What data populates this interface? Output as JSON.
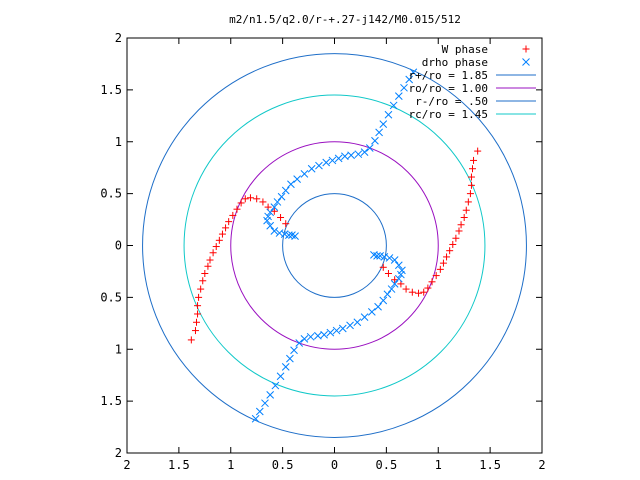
{
  "chart_data": {
    "type": "scatter",
    "title": "m2/n1.5/q2.0/r-+.27-j142/M0.015/512",
    "xlim": [
      -2,
      2
    ],
    "ylim": [
      -2,
      2
    ],
    "x_ticks": [
      -2,
      -1.5,
      -1,
      -0.5,
      0,
      0.5,
      1,
      1.5,
      2
    ],
    "y_ticks": [
      -2,
      -1.5,
      -1,
      -0.5,
      0,
      0.5,
      1,
      1.5,
      2
    ],
    "x_tick_labels": [
      "2",
      "1.5",
      "1",
      "0.5",
      "0",
      "0.5",
      "1",
      "1.5",
      "2"
    ],
    "y_tick_labels": [
      "2",
      "1.5",
      "1",
      "0.5",
      "0",
      "0.5",
      "1",
      "1.5",
      "2"
    ],
    "grid": false,
    "legend_position": "top-right",
    "series": [
      {
        "name": "W phase",
        "marker": "plus",
        "color": "#ff0000",
        "points": [
          [
            -1.38,
            -0.91
          ],
          [
            -1.34,
            -0.82
          ],
          [
            -1.33,
            -0.74
          ],
          [
            -1.32,
            -0.66
          ],
          [
            -1.32,
            -0.58
          ],
          [
            -1.31,
            -0.5
          ],
          [
            -1.29,
            -0.42
          ],
          [
            -1.27,
            -0.34
          ],
          [
            -1.25,
            -0.27
          ],
          [
            -1.22,
            -0.2
          ],
          [
            -1.2,
            -0.14
          ],
          [
            -1.17,
            -0.07
          ],
          [
            -1.14,
            -0.01
          ],
          [
            -1.11,
            0.05
          ],
          [
            -1.08,
            0.11
          ],
          [
            -1.05,
            0.17
          ],
          [
            -1.02,
            0.23
          ],
          [
            -0.98,
            0.29
          ],
          [
            -0.94,
            0.35
          ],
          [
            -0.9,
            0.41
          ],
          [
            -0.86,
            0.45
          ],
          [
            -0.81,
            0.46
          ],
          [
            -0.75,
            0.45
          ],
          [
            -0.69,
            0.42
          ],
          [
            -0.64,
            0.37
          ],
          [
            -0.58,
            0.33
          ],
          [
            -0.52,
            0.27
          ],
          [
            -0.47,
            0.21
          ],
          [
            0.47,
            -0.21
          ],
          [
            0.52,
            -0.27
          ],
          [
            0.58,
            -0.33
          ],
          [
            0.64,
            -0.37
          ],
          [
            0.69,
            -0.42
          ],
          [
            0.75,
            -0.45
          ],
          [
            0.81,
            -0.46
          ],
          [
            0.86,
            -0.45
          ],
          [
            0.9,
            -0.41
          ],
          [
            0.94,
            -0.35
          ],
          [
            0.98,
            -0.29
          ],
          [
            1.02,
            -0.23
          ],
          [
            1.05,
            -0.17
          ],
          [
            1.08,
            -0.11
          ],
          [
            1.11,
            -0.05
          ],
          [
            1.14,
            0.01
          ],
          [
            1.17,
            0.07
          ],
          [
            1.2,
            0.14
          ],
          [
            1.22,
            0.2
          ],
          [
            1.25,
            0.27
          ],
          [
            1.27,
            0.34
          ],
          [
            1.29,
            0.42
          ],
          [
            1.31,
            0.5
          ],
          [
            1.32,
            0.58
          ],
          [
            1.32,
            0.66
          ],
          [
            1.33,
            0.74
          ],
          [
            1.34,
            0.82
          ],
          [
            1.38,
            0.91
          ]
        ]
      },
      {
        "name": "drho phase",
        "marker": "cross",
        "color": "#0080ff",
        "points": [
          [
            -0.76,
            -1.67
          ],
          [
            -0.72,
            -1.6
          ],
          [
            -0.67,
            -1.52
          ],
          [
            -0.62,
            -1.44
          ],
          [
            -0.57,
            -1.35
          ],
          [
            -0.52,
            -1.26
          ],
          [
            -0.47,
            -1.17
          ],
          [
            -0.43,
            -1.09
          ],
          [
            -0.39,
            -1.01
          ],
          [
            -0.34,
            -0.94
          ],
          [
            -0.29,
            -0.9
          ],
          [
            -0.23,
            -0.88
          ],
          [
            -0.16,
            -0.87
          ],
          [
            -0.1,
            -0.86
          ],
          [
            -0.04,
            -0.84
          ],
          [
            0.02,
            -0.82
          ],
          [
            0.08,
            -0.8
          ],
          [
            0.15,
            -0.77
          ],
          [
            0.22,
            -0.74
          ],
          [
            0.29,
            -0.69
          ],
          [
            0.36,
            -0.64
          ],
          [
            0.42,
            -0.59
          ],
          [
            0.47,
            -0.53
          ],
          [
            0.51,
            -0.47
          ],
          [
            0.55,
            -0.42
          ],
          [
            0.58,
            -0.37
          ],
          [
            0.62,
            -0.32
          ],
          [
            0.64,
            -0.28
          ],
          [
            0.65,
            -0.24
          ],
          [
            0.62,
            -0.19
          ],
          [
            0.58,
            -0.14
          ],
          [
            0.53,
            -0.12
          ],
          [
            0.48,
            -0.11
          ],
          [
            0.44,
            -0.1
          ],
          [
            0.41,
            -0.1
          ],
          [
            0.38,
            -0.09
          ],
          [
            -0.38,
            0.09
          ],
          [
            -0.41,
            0.1
          ],
          [
            -0.44,
            0.1
          ],
          [
            -0.48,
            0.11
          ],
          [
            -0.53,
            0.12
          ],
          [
            -0.58,
            0.14
          ],
          [
            -0.62,
            0.19
          ],
          [
            -0.65,
            0.24
          ],
          [
            -0.64,
            0.28
          ],
          [
            -0.62,
            0.32
          ],
          [
            -0.58,
            0.37
          ],
          [
            -0.55,
            0.42
          ],
          [
            -0.51,
            0.47
          ],
          [
            -0.47,
            0.53
          ],
          [
            -0.42,
            0.59
          ],
          [
            -0.36,
            0.64
          ],
          [
            -0.29,
            0.69
          ],
          [
            -0.22,
            0.74
          ],
          [
            -0.15,
            0.77
          ],
          [
            -0.08,
            0.8
          ],
          [
            -0.02,
            0.82
          ],
          [
            0.04,
            0.84
          ],
          [
            0.1,
            0.86
          ],
          [
            0.16,
            0.87
          ],
          [
            0.23,
            0.88
          ],
          [
            0.29,
            0.9
          ],
          [
            0.34,
            0.94
          ],
          [
            0.39,
            1.01
          ],
          [
            0.43,
            1.09
          ],
          [
            0.47,
            1.17
          ],
          [
            0.52,
            1.26
          ],
          [
            0.57,
            1.35
          ],
          [
            0.62,
            1.44
          ],
          [
            0.67,
            1.52
          ],
          [
            0.72,
            1.6
          ],
          [
            0.76,
            1.67
          ]
        ]
      }
    ],
    "circles": [
      {
        "name": "r+/ro = 1.85",
        "radius": 1.85,
        "color": "#1e6ec8"
      },
      {
        "name": "ro/ro = 1.00",
        "radius": 1.0,
        "color": "#9a10c0"
      },
      {
        "name": "r-/ro = .50",
        "radius": 0.5,
        "color": "#1e6ec8"
      },
      {
        "name": "rc/ro = 1.45",
        "radius": 1.45,
        "color": "#10c8c8"
      }
    ]
  }
}
